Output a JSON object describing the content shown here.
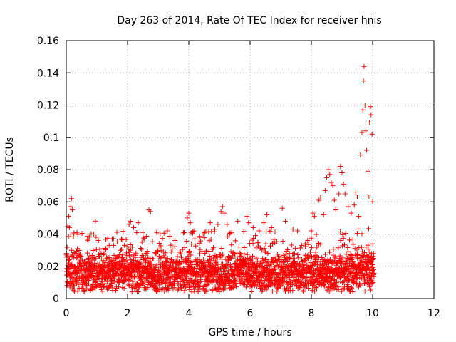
{
  "chart_data": {
    "type": "scatter",
    "title": "Day 263 of 2014, Rate Of TEC Index for receiver hnis",
    "xlabel": "GPS time / hours",
    "ylabel": "ROTI / TECUs",
    "xlim": [
      0,
      12
    ],
    "ylim": [
      0,
      0.16
    ],
    "xticks": [
      "0",
      "2",
      "4",
      "6",
      "8",
      "10",
      "12"
    ],
    "yticks": [
      "0",
      "0.02",
      "0.04",
      "0.06",
      "0.08",
      "0.1",
      "0.12",
      "0.14",
      "0.16"
    ],
    "grid": true,
    "marker": "+",
    "series": [
      {
        "name": "ROTI",
        "color": "#ff0000",
        "points": [
          [
            0.05,
            0.045
          ],
          [
            0.08,
            0.051
          ],
          [
            0.1,
            0.044
          ],
          [
            0.15,
            0.057
          ],
          [
            0.17,
            0.062
          ],
          [
            0.2,
            0.055
          ],
          [
            0.35,
            0.041
          ],
          [
            0.9,
            0.04
          ],
          [
            0.95,
            0.048
          ],
          [
            1.05,
            0.036
          ],
          [
            1.2,
            0.031
          ],
          [
            1.4,
            0.033
          ],
          [
            1.5,
            0.037
          ],
          [
            1.55,
            0.033
          ],
          [
            1.8,
            0.037
          ],
          [
            1.9,
            0.033
          ],
          [
            2.05,
            0.046
          ],
          [
            2.1,
            0.048
          ],
          [
            2.2,
            0.044
          ],
          [
            2.35,
            0.047
          ],
          [
            2.5,
            0.041
          ],
          [
            2.7,
            0.055
          ],
          [
            2.75,
            0.054
          ],
          [
            2.95,
            0.041
          ],
          [
            3.05,
            0.032
          ],
          [
            3.3,
            0.042
          ],
          [
            3.55,
            0.036
          ],
          [
            3.85,
            0.041
          ],
          [
            3.95,
            0.05
          ],
          [
            4.0,
            0.053
          ],
          [
            4.05,
            0.047
          ],
          [
            4.2,
            0.037
          ],
          [
            4.35,
            0.038
          ],
          [
            4.7,
            0.047
          ],
          [
            4.85,
            0.043
          ],
          [
            4.95,
            0.046
          ],
          [
            5.05,
            0.054
          ],
          [
            5.1,
            0.057
          ],
          [
            5.15,
            0.053
          ],
          [
            5.25,
            0.046
          ],
          [
            5.4,
            0.041
          ],
          [
            5.6,
            0.048
          ],
          [
            5.9,
            0.051
          ],
          [
            5.95,
            0.047
          ],
          [
            6.1,
            0.044
          ],
          [
            6.3,
            0.042
          ],
          [
            6.45,
            0.047
          ],
          [
            6.55,
            0.052
          ],
          [
            6.7,
            0.044
          ],
          [
            7.05,
            0.056
          ],
          [
            7.15,
            0.048
          ],
          [
            7.4,
            0.043
          ],
          [
            7.55,
            0.042
          ],
          [
            7.8,
            0.034
          ],
          [
            8.0,
            0.042
          ],
          [
            8.05,
            0.053
          ],
          [
            8.1,
            0.051
          ],
          [
            8.25,
            0.061
          ],
          [
            8.3,
            0.063
          ],
          [
            8.4,
            0.052
          ],
          [
            8.45,
            0.067
          ],
          [
            8.5,
            0.075
          ],
          [
            8.55,
            0.08
          ],
          [
            8.6,
            0.077
          ],
          [
            8.65,
            0.072
          ],
          [
            8.7,
            0.07
          ],
          [
            8.75,
            0.061
          ],
          [
            8.8,
            0.055
          ],
          [
            8.9,
            0.065
          ],
          [
            8.95,
            0.082
          ],
          [
            9.0,
            0.078
          ],
          [
            9.05,
            0.071
          ],
          [
            9.1,
            0.065
          ],
          [
            9.2,
            0.057
          ],
          [
            9.3,
            0.053
          ],
          [
            9.4,
            0.058
          ],
          [
            9.45,
            0.066
          ],
          [
            9.5,
            0.063
          ],
          [
            9.55,
            0.051
          ],
          [
            9.6,
            0.089
          ],
          [
            9.65,
            0.103
          ],
          [
            9.68,
            0.117
          ],
          [
            9.7,
            0.135
          ],
          [
            9.72,
            0.144
          ],
          [
            9.75,
            0.12
          ],
          [
            9.78,
            0.104
          ],
          [
            9.8,
            0.092
          ],
          [
            9.85,
            0.079
          ],
          [
            9.88,
            0.063
          ],
          [
            9.9,
            0.109
          ],
          [
            9.93,
            0.119
          ],
          [
            9.95,
            0.114
          ],
          [
            9.98,
            0.102
          ],
          [
            10.0,
            0.06
          ]
        ],
        "dense_band": {
          "description": "thousands of overlapping points covering the main trace",
          "x_range": [
            0,
            10.05
          ],
          "typical_y_range": [
            0.005,
            0.03
          ]
        }
      }
    ]
  }
}
